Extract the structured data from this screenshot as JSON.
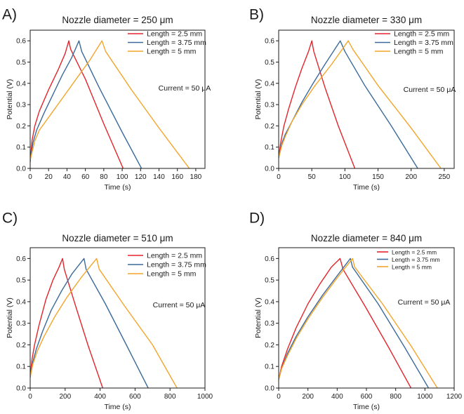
{
  "colors": {
    "red": "#e3242b",
    "blue": "#3b6a9b",
    "orange": "#f2a52a",
    "axis": "#1a1a1a"
  },
  "chart_data": [
    {
      "type": "line",
      "panel_label": "A)",
      "title": "Nozzle diameter = 250 μm",
      "xlabel": "Time (s)",
      "ylabel": "Potential (V)",
      "xlim": [
        0,
        190
      ],
      "ylim": [
        0,
        0.65
      ],
      "xticks": [
        0,
        20,
        40,
        60,
        80,
        100,
        120,
        140,
        160,
        180
      ],
      "yticks": [
        0.0,
        0.1,
        0.2,
        0.3,
        0.4,
        0.5,
        0.6
      ],
      "annotation": "Current = 50 μA",
      "annotation_position": "right-middle",
      "legend_position": "top-right",
      "series": [
        {
          "name": "Length = 2.5 mm",
          "color": "#e3242b",
          "start_v": 0.03,
          "peak_x": 42,
          "peak_v": 0.6,
          "end_x": 101,
          "points": [
            [
              0,
              0.03
            ],
            [
              2,
              0.13
            ],
            [
              5,
              0.2
            ],
            [
              10,
              0.27
            ],
            [
              20,
              0.37
            ],
            [
              30,
              0.46
            ],
            [
              38,
              0.54
            ],
            [
              42,
              0.6
            ],
            [
              44,
              0.56
            ],
            [
              60,
              0.42
            ],
            [
              80,
              0.21
            ],
            [
              101,
              0.0
            ]
          ]
        },
        {
          "name": "Length = 3.75 mm",
          "color": "#3b6a9b",
          "start_v": 0.04,
          "peak_x": 53,
          "peak_v": 0.6,
          "end_x": 121,
          "points": [
            [
              0,
              0.04
            ],
            [
              3,
              0.12
            ],
            [
              7,
              0.18
            ],
            [
              15,
              0.26
            ],
            [
              25,
              0.35
            ],
            [
              35,
              0.44
            ],
            [
              45,
              0.52
            ],
            [
              53,
              0.6
            ],
            [
              56,
              0.55
            ],
            [
              75,
              0.38
            ],
            [
              100,
              0.17
            ],
            [
              121,
              0.0
            ]
          ]
        },
        {
          "name": "Length = 5 mm",
          "color": "#f2a52a",
          "start_v": 0.04,
          "peak_x": 78,
          "peak_v": 0.6,
          "end_x": 173,
          "points": [
            [
              0,
              0.04
            ],
            [
              5,
              0.13
            ],
            [
              10,
              0.18
            ],
            [
              20,
              0.24
            ],
            [
              35,
              0.33
            ],
            [
              50,
              0.42
            ],
            [
              65,
              0.51
            ],
            [
              78,
              0.6
            ],
            [
              82,
              0.55
            ],
            [
              110,
              0.37
            ],
            [
              140,
              0.19
            ],
            [
              173,
              0.0
            ]
          ]
        }
      ]
    },
    {
      "type": "line",
      "panel_label": "B)",
      "title": "Nozzle diameter = 330 μm",
      "xlabel": "Time (s)",
      "ylabel": "Potential (V)",
      "xlim": [
        0,
        265
      ],
      "ylim": [
        0,
        0.65
      ],
      "xticks": [
        0,
        50,
        100,
        150,
        200,
        250
      ],
      "yticks": [
        0.0,
        0.1,
        0.2,
        0.3,
        0.4,
        0.5,
        0.6
      ],
      "annotation": "Current = 50 μA",
      "annotation_position": "right-middle",
      "legend_position": "top-right",
      "series": [
        {
          "name": "Length = 2.5 mm",
          "color": "#e3242b",
          "start_v": 0.05,
          "peak_x": 50,
          "peak_v": 0.6,
          "end_x": 115,
          "points": [
            [
              0,
              0.05
            ],
            [
              3,
              0.12
            ],
            [
              8,
              0.2
            ],
            [
              15,
              0.28
            ],
            [
              25,
              0.38
            ],
            [
              35,
              0.47
            ],
            [
              45,
              0.55
            ],
            [
              50,
              0.6
            ],
            [
              53,
              0.55
            ],
            [
              70,
              0.38
            ],
            [
              90,
              0.2
            ],
            [
              115,
              0.0
            ]
          ]
        },
        {
          "name": "Length = 3.75 mm",
          "color": "#3b6a9b",
          "start_v": 0.05,
          "peak_x": 93,
          "peak_v": 0.6,
          "end_x": 210,
          "points": [
            [
              0,
              0.05
            ],
            [
              5,
              0.12
            ],
            [
              10,
              0.16
            ],
            [
              20,
              0.22
            ],
            [
              35,
              0.31
            ],
            [
              50,
              0.39
            ],
            [
              70,
              0.49
            ],
            [
              93,
              0.6
            ],
            [
              100,
              0.55
            ],
            [
              130,
              0.39
            ],
            [
              170,
              0.2
            ],
            [
              210,
              0.0
            ]
          ]
        },
        {
          "name": "Length = 5 mm",
          "color": "#f2a52a",
          "start_v": 0.05,
          "peak_x": 105,
          "peak_v": 0.6,
          "end_x": 245,
          "points": [
            [
              0,
              0.05
            ],
            [
              5,
              0.11
            ],
            [
              10,
              0.15
            ],
            [
              20,
              0.22
            ],
            [
              35,
              0.3
            ],
            [
              55,
              0.39
            ],
            [
              80,
              0.49
            ],
            [
              105,
              0.6
            ],
            [
              112,
              0.56
            ],
            [
              150,
              0.39
            ],
            [
              200,
              0.19
            ],
            [
              245,
              0.0
            ]
          ]
        }
      ]
    },
    {
      "type": "line",
      "panel_label": "C)",
      "title": "Nozzle diameter = 510 μm",
      "xlabel": "Time (s)",
      "ylabel": "Potential (V)",
      "xlim": [
        0,
        1000
      ],
      "ylim": [
        0,
        0.65
      ],
      "xticks": [
        0,
        200,
        400,
        600,
        800,
        1000
      ],
      "yticks": [
        0.0,
        0.1,
        0.2,
        0.3,
        0.4,
        0.5,
        0.6
      ],
      "annotation": "Current = 50 μA",
      "annotation_position": "right-middle",
      "legend_position": "top-right",
      "series": [
        {
          "name": "Length = 2.5 mm",
          "color": "#e3242b",
          "start_v": 0.05,
          "peak_x": 185,
          "peak_v": 0.6,
          "end_x": 415,
          "points": [
            [
              0,
              0.05
            ],
            [
              10,
              0.13
            ],
            [
              25,
              0.2
            ],
            [
              50,
              0.29
            ],
            [
              90,
              0.41
            ],
            [
              130,
              0.5
            ],
            [
              165,
              0.56
            ],
            [
              185,
              0.6
            ],
            [
              195,
              0.55
            ],
            [
              260,
              0.38
            ],
            [
              330,
              0.2
            ],
            [
              415,
              0.0
            ]
          ]
        },
        {
          "name": "Length = 3.75 mm",
          "color": "#3b6a9b",
          "start_v": 0.05,
          "peak_x": 308,
          "peak_v": 0.6,
          "end_x": 675,
          "points": [
            [
              0,
              0.05
            ],
            [
              15,
              0.12
            ],
            [
              35,
              0.18
            ],
            [
              70,
              0.26
            ],
            [
              120,
              0.36
            ],
            [
              180,
              0.45
            ],
            [
              240,
              0.53
            ],
            [
              308,
              0.6
            ],
            [
              320,
              0.55
            ],
            [
              430,
              0.39
            ],
            [
              550,
              0.2
            ],
            [
              675,
              0.0
            ]
          ]
        },
        {
          "name": "Length = 5 mm",
          "color": "#f2a52a",
          "start_v": 0.05,
          "peak_x": 380,
          "peak_v": 0.6,
          "end_x": 840,
          "points": [
            [
              0,
              0.05
            ],
            [
              15,
              0.11
            ],
            [
              40,
              0.17
            ],
            [
              80,
              0.24
            ],
            [
              140,
              0.33
            ],
            [
              210,
              0.42
            ],
            [
              290,
              0.51
            ],
            [
              380,
              0.6
            ],
            [
              395,
              0.55
            ],
            [
              540,
              0.38
            ],
            [
              700,
              0.2
            ],
            [
              840,
              0.0
            ]
          ]
        }
      ]
    },
    {
      "type": "line",
      "panel_label": "D)",
      "title": "Nozzle diameter = 840 μm",
      "xlabel": "Time (s)",
      "ylabel": "Potential (V)",
      "xlim": [
        0,
        1200
      ],
      "ylim": [
        0,
        0.65
      ],
      "xticks": [
        0,
        200,
        400,
        600,
        800,
        1000,
        1200
      ],
      "yticks": [
        0.0,
        0.1,
        0.2,
        0.3,
        0.4,
        0.5,
        0.6
      ],
      "annotation": "Current = 50 μA",
      "annotation_position": "right-middle",
      "legend_position": "top-right",
      "series": [
        {
          "name": "Length = 2.5 mm",
          "color": "#e3242b",
          "start_v": 0.04,
          "peak_x": 420,
          "peak_v": 0.6,
          "end_x": 905,
          "points": [
            [
              0,
              0.04
            ],
            [
              20,
              0.1
            ],
            [
              60,
              0.18
            ],
            [
              120,
              0.28
            ],
            [
              200,
              0.39
            ],
            [
              280,
              0.48
            ],
            [
              360,
              0.56
            ],
            [
              420,
              0.6
            ],
            [
              440,
              0.55
            ],
            [
              590,
              0.38
            ],
            [
              750,
              0.19
            ],
            [
              905,
              0.0
            ]
          ]
        },
        {
          "name": "Length = 3.75 mm",
          "color": "#3b6a9b",
          "start_v": 0.04,
          "peak_x": 490,
          "peak_v": 0.6,
          "end_x": 1025,
          "points": [
            [
              0,
              0.04
            ],
            [
              20,
              0.09
            ],
            [
              60,
              0.16
            ],
            [
              120,
              0.24
            ],
            [
              200,
              0.33
            ],
            [
              300,
              0.43
            ],
            [
              400,
              0.52
            ],
            [
              490,
              0.6
            ],
            [
              505,
              0.56
            ],
            [
              680,
              0.39
            ],
            [
              860,
              0.19
            ],
            [
              1025,
              0.0
            ]
          ]
        },
        {
          "name": "Length = 5 mm",
          "color": "#f2a52a",
          "start_v": 0.04,
          "peak_x": 505,
          "peak_v": 0.6,
          "end_x": 1085,
          "points": [
            [
              0,
              0.04
            ],
            [
              20,
              0.09
            ],
            [
              60,
              0.15
            ],
            [
              120,
              0.23
            ],
            [
              200,
              0.32
            ],
            [
              300,
              0.42
            ],
            [
              400,
              0.51
            ],
            [
              505,
              0.6
            ],
            [
              520,
              0.56
            ],
            [
              710,
              0.39
            ],
            [
              910,
              0.19
            ],
            [
              1085,
              0.0
            ]
          ]
        }
      ]
    }
  ]
}
